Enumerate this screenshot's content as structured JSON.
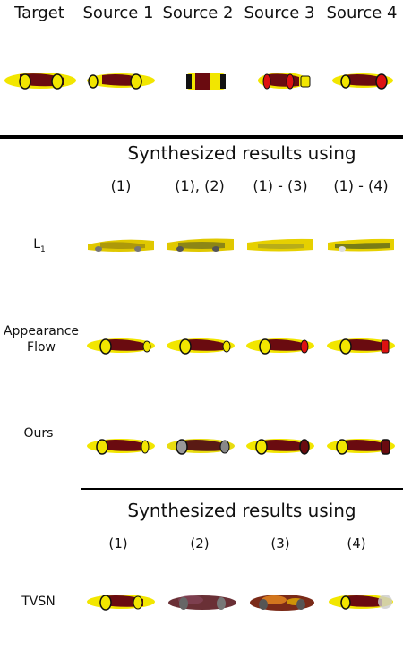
{
  "header": {
    "columns": [
      "Target",
      "Source 1",
      "Source 2",
      "Source 3",
      "Source 4"
    ]
  },
  "section1": {
    "title": "Synthesized results using",
    "subheaders": [
      "(1)",
      "(1), (2)",
      "(1) - (3)",
      "(1) - (4)"
    ]
  },
  "rows": {
    "l1": {
      "label": "L",
      "subscript": "1"
    },
    "appearance_flow": {
      "label_line1": "Appearance",
      "label_line2": "Flow"
    },
    "ours": {
      "label": "Ours"
    }
  },
  "section2": {
    "title": "Synthesized results using",
    "subheaders": [
      "(1)",
      "(2)",
      "(3)",
      "(4)"
    ]
  },
  "tvsn": {
    "label": "TVSN"
  },
  "colors": {
    "body": "#f2e600",
    "dark": "#6a0b10",
    "wheel": "#111111",
    "rule": "#000000"
  }
}
